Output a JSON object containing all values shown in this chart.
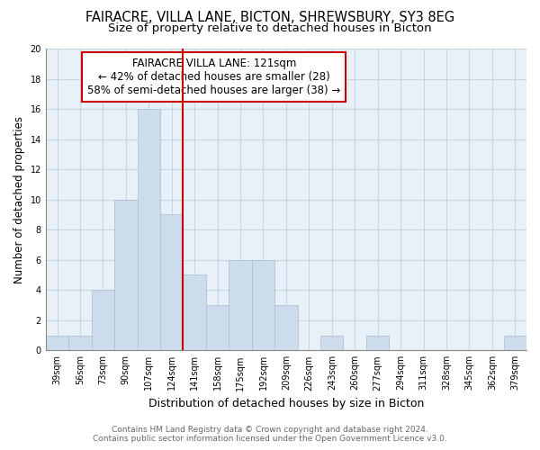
{
  "title1": "FAIRACRE, VILLA LANE, BICTON, SHREWSBURY, SY3 8EG",
  "title2": "Size of property relative to detached houses in Bicton",
  "xlabel": "Distribution of detached houses by size in Bicton",
  "ylabel": "Number of detached properties",
  "categories": [
    "39sqm",
    "56sqm",
    "73sqm",
    "90sqm",
    "107sqm",
    "124sqm",
    "141sqm",
    "158sqm",
    "175sqm",
    "192sqm",
    "209sqm",
    "226sqm",
    "243sqm",
    "260sqm",
    "277sqm",
    "294sqm",
    "311sqm",
    "328sqm",
    "345sqm",
    "362sqm",
    "379sqm"
  ],
  "values": [
    1,
    1,
    4,
    10,
    16,
    9,
    5,
    3,
    6,
    6,
    3,
    0,
    1,
    0,
    1,
    0,
    0,
    0,
    0,
    0,
    1
  ],
  "bar_color": "#ccdcec",
  "bar_edgecolor": "#aabccc",
  "vline_position": 5.5,
  "vline_color": "#cc0000",
  "annotation_line1": "FAIRACRE VILLA LANE: 121sqm",
  "annotation_line2": "← 42% of detached houses are smaller (28)",
  "annotation_line3": "58% of semi-detached houses are larger (38) →",
  "annotation_box_color": "white",
  "annotation_box_edgecolor": "#cc0000",
  "ylim": [
    0,
    20
  ],
  "yticks": [
    0,
    2,
    4,
    6,
    8,
    10,
    12,
    14,
    16,
    18,
    20
  ],
  "grid_color": "#c8d4e0",
  "background_color": "#e8f0f8",
  "footer1": "Contains HM Land Registry data © Crown copyright and database right 2024.",
  "footer2": "Contains public sector information licensed under the Open Government Licence v3.0.",
  "title1_fontsize": 10.5,
  "title2_fontsize": 9.5,
  "xlabel_fontsize": 9,
  "ylabel_fontsize": 8.5,
  "tick_fontsize": 7,
  "annotation_fontsize": 8.5,
  "footer_fontsize": 6.5
}
